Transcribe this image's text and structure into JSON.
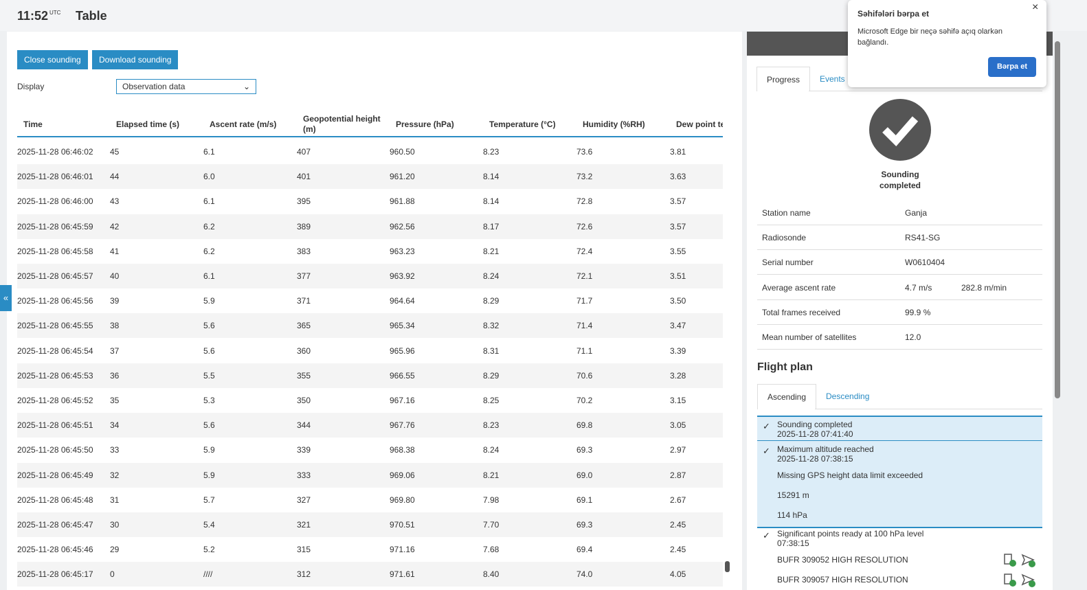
{
  "header": {
    "time": "11:52",
    "time_zone": "UTC",
    "title": "Table"
  },
  "toolbar": {
    "buttons": [
      "Close sounding",
      "Download sounding"
    ],
    "display_label": "Display",
    "display_value": "Observation data"
  },
  "table": {
    "headers": [
      "Time",
      "Elapsed time (s)",
      "Ascent rate (m/s)",
      "Geopotential height (m)",
      "Pressure (hPa)",
      "Temperature (°C)",
      "Humidity (%RH)",
      "Dew point te (°C)"
    ],
    "rows": [
      [
        "2025-11-28 06:46:02",
        "45",
        "6.1",
        "407",
        "960.50",
        "8.23",
        "73.6",
        "3.81"
      ],
      [
        "2025-11-28 06:46:01",
        "44",
        "6.0",
        "401",
        "961.20",
        "8.14",
        "73.2",
        "3.63"
      ],
      [
        "2025-11-28 06:46:00",
        "43",
        "6.1",
        "395",
        "961.88",
        "8.14",
        "72.8",
        "3.57"
      ],
      [
        "2025-11-28 06:45:59",
        "42",
        "6.2",
        "389",
        "962.56",
        "8.17",
        "72.6",
        "3.57"
      ],
      [
        "2025-11-28 06:45:58",
        "41",
        "6.2",
        "383",
        "963.23",
        "8.21",
        "72.4",
        "3.55"
      ],
      [
        "2025-11-28 06:45:57",
        "40",
        "6.1",
        "377",
        "963.92",
        "8.24",
        "72.1",
        "3.51"
      ],
      [
        "2025-11-28 06:45:56",
        "39",
        "5.9",
        "371",
        "964.64",
        "8.29",
        "71.7",
        "3.50"
      ],
      [
        "2025-11-28 06:45:55",
        "38",
        "5.6",
        "365",
        "965.34",
        "8.32",
        "71.4",
        "3.47"
      ],
      [
        "2025-11-28 06:45:54",
        "37",
        "5.6",
        "360",
        "965.96",
        "8.31",
        "71.1",
        "3.39"
      ],
      [
        "2025-11-28 06:45:53",
        "36",
        "5.5",
        "355",
        "966.55",
        "8.29",
        "70.6",
        "3.28"
      ],
      [
        "2025-11-28 06:45:52",
        "35",
        "5.3",
        "350",
        "967.16",
        "8.25",
        "70.2",
        "3.15"
      ],
      [
        "2025-11-28 06:45:51",
        "34",
        "5.6",
        "344",
        "967.76",
        "8.23",
        "69.8",
        "3.05"
      ],
      [
        "2025-11-28 06:45:50",
        "33",
        "5.9",
        "339",
        "968.38",
        "8.24",
        "69.3",
        "2.97"
      ],
      [
        "2025-11-28 06:45:49",
        "32",
        "5.9",
        "333",
        "969.06",
        "8.21",
        "69.0",
        "2.87"
      ],
      [
        "2025-11-28 06:45:48",
        "31",
        "5.7",
        "327",
        "969.80",
        "7.98",
        "69.1",
        "2.67"
      ],
      [
        "2025-11-28 06:45:47",
        "30",
        "5.4",
        "321",
        "970.51",
        "7.70",
        "69.3",
        "2.45"
      ],
      [
        "2025-11-28 06:45:46",
        "29",
        "5.2",
        "315",
        "971.16",
        "7.68",
        "69.4",
        "2.45"
      ],
      [
        "2025-11-28 06:45:17",
        "0",
        "////",
        "312",
        "971.61",
        "8.40",
        "74.0",
        "4.05"
      ]
    ]
  },
  "side_panel": {
    "tabs": [
      "Progress",
      "Events"
    ],
    "status": "Sounding completed",
    "info": [
      [
        "Station name",
        "Ganja"
      ],
      [
        "Radiosonde",
        "RS41-SG"
      ],
      [
        "Serial number",
        "W0610404"
      ],
      [
        "Average ascent rate",
        "4.7 m/s",
        "282.8 m/min"
      ],
      [
        "Total frames received",
        "99.9 %"
      ],
      [
        "Mean number of satellites",
        "12.0"
      ]
    ],
    "flight_plan": {
      "title": "Flight plan",
      "tabs": [
        "Ascending",
        "Descending"
      ],
      "items": [
        {
          "title": "Sounding completed",
          "time": "2025-11-28 07:41:40",
          "details": []
        },
        {
          "title": "Maximum altitude reached",
          "time": "2025-11-28 07:38:15",
          "details": [
            "Missing GPS height data limit exceeded",
            "15291 m",
            "114 hPa"
          ]
        },
        {
          "title": "Significant points ready at 100 hPa level",
          "time": "07:38:15",
          "details": [
            "BUFR 309052 HIGH RESOLUTION",
            "BUFR 309057 HIGH RESOLUTION"
          ]
        }
      ]
    }
  },
  "notification": {
    "title": "Səhifələri bərpa et",
    "body": "Microsoft Edge bir neçə səhifə açıq olarkən bağlandı.",
    "button": "Bərpa et"
  }
}
